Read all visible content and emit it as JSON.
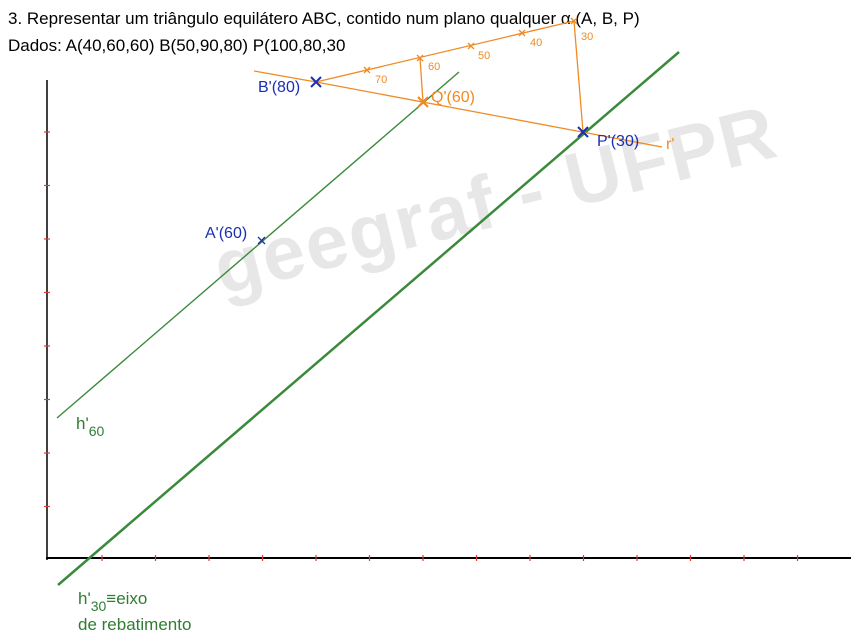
{
  "title": {
    "line1": "3. Representar um triângulo equilátero ABC, contido num plano qualquer α (A, B, P)",
    "line2": "Dados: A(40,60,60)  B(50,90,80)  P(100,80,30"
  },
  "labels": {
    "b": "B'(80)",
    "q": "Q'(60)",
    "p": "P'(30)",
    "r": "r'",
    "a": "A'(60)",
    "h60_main": "h'",
    "h60_sub": "60",
    "h30_main": "h'",
    "h30_sub": "30",
    "h30_rest": "≡eixo",
    "h30_line2": "de rebatimento"
  },
  "graduation": [
    "70",
    "60",
    "50",
    "40",
    "30"
  ],
  "watermark": "geegraf - UFPR",
  "colors": {
    "orange": "#f08a24",
    "green": "#2e7d32",
    "blue": "#1a2fb3",
    "red": "#e53935",
    "axis": "#000000"
  }
}
